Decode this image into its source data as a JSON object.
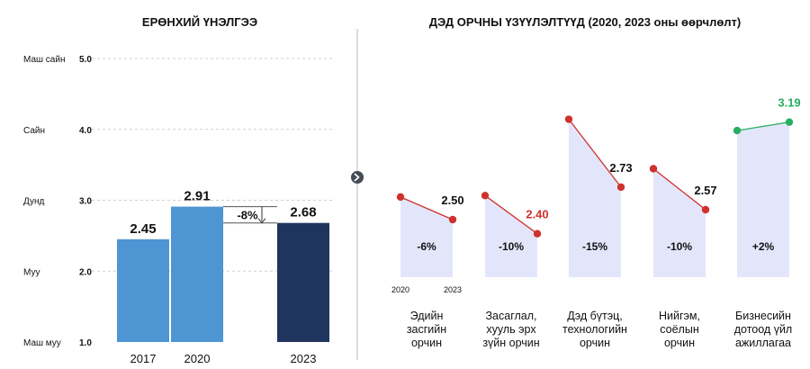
{
  "chart_data": [
    {
      "type": "bar",
      "title": "ЕРӨНХИЙ ҮНЭЛГЭЭ",
      "categories": [
        "2017",
        "2020",
        "2023"
      ],
      "values": [
        2.45,
        2.91,
        2.68
      ],
      "value_labels": [
        "2.45",
        "2.91",
        "2.68"
      ],
      "bar_colors": [
        "#4E95D3",
        "#4E95D3",
        "#1F355E"
      ],
      "ylim": [
        1.0,
        5.0
      ],
      "y_ticks": [
        "1.0",
        "2.0",
        "3.0",
        "4.0",
        "5.0"
      ],
      "y_levels": [
        "Маш муу",
        "Муу",
        "Дунд",
        "Сайн",
        "Маш сайн"
      ],
      "change_label": "-8%",
      "grid": true
    },
    {
      "type": "line",
      "title": "ДЭД ОРЧНЫ ҮЗҮҮЛЭЛТҮҮД (2020, 2023 оны өөрчлөлт)",
      "x": [
        "2020",
        "2023"
      ],
      "series": [
        {
          "name": "Эдийн засгийн орчин",
          "values": [
            2.66,
            2.5
          ],
          "end_label": "2.50",
          "change": "-6%",
          "color": "#D0312D",
          "label_color": "#111111"
        },
        {
          "name": "Засаглал, хууль эрх зүйн орчин",
          "values": [
            2.67,
            2.4
          ],
          "end_label": "2.40",
          "change": "-10%",
          "color": "#D0312D",
          "label_color": "#D0312D"
        },
        {
          "name": "Дэд бүтэц, технологийн орчин",
          "values": [
            3.21,
            2.73
          ],
          "end_label": "2.73",
          "change": "-15%",
          "color": "#D0312D",
          "label_color": "#111111"
        },
        {
          "name": "Нийгэм, соёлын орчин",
          "values": [
            2.86,
            2.57
          ],
          "end_label": "2.57",
          "change": "-10%",
          "color": "#D0312D",
          "label_color": "#111111"
        },
        {
          "name": "Бизнесийн дотоод үйл ажиллагаа",
          "values": [
            3.13,
            3.19
          ],
          "end_label": "3.19",
          "change": "+2%",
          "color": "#27AE60",
          "label_color": "#27AE60"
        }
      ]
    }
  ],
  "colors": {
    "area_fill": "#E3E6FA",
    "grid": "#d0d0d0",
    "divider": "#b8b8b8",
    "arrow_button": "#444b55"
  },
  "icons": {
    "divider_toggle": "chevron-right-icon"
  }
}
